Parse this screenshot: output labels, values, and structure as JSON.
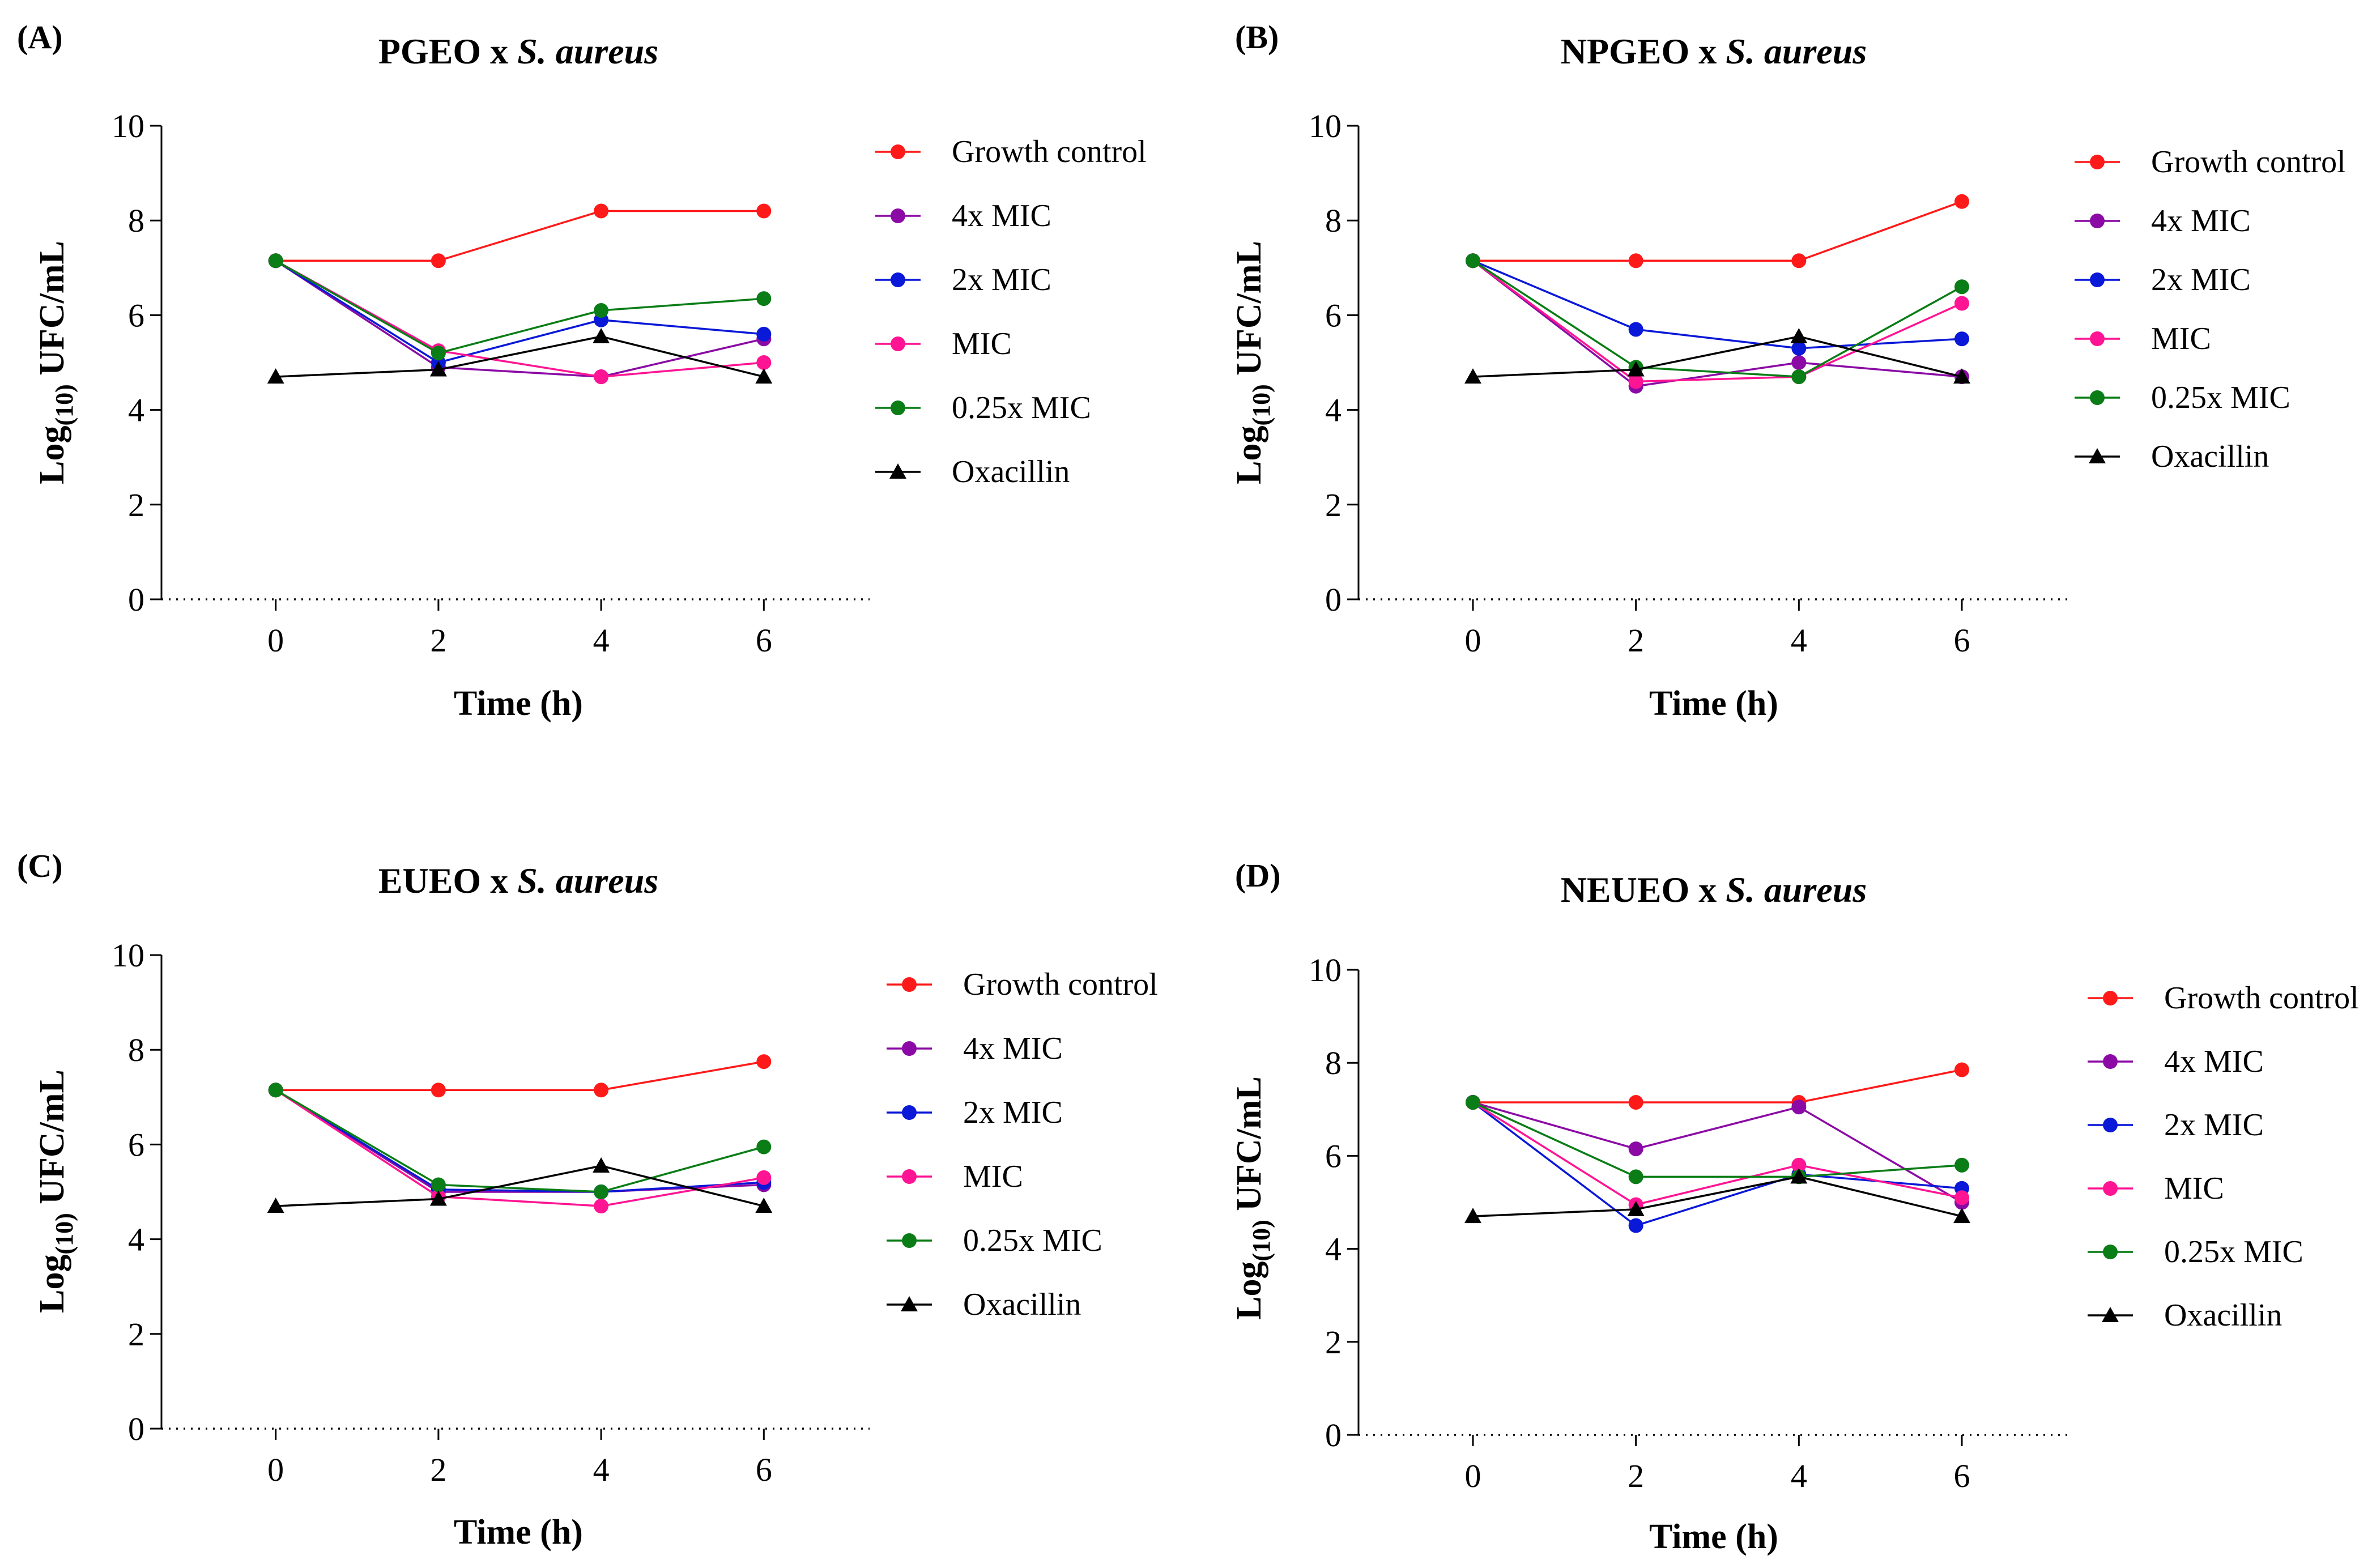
{
  "figure": {
    "colors": {
      "Growth control": "#ff1a1a",
      "4x MIC": "#8b0aa5",
      "2x MIC": "#0a18d8",
      "MIC": "#ff1493",
      "0.25x MIC": "#0a7d16",
      "Oxacillin": "#000000"
    }
  },
  "chart_data": [
    {
      "type": "line",
      "panel_label": "(A)",
      "title_main": "PGEO x ",
      "title_italic": "S. aureus",
      "xlabel": "Time (h)",
      "ylabel_prefix": "Log",
      "ylabel_sub": "(10)",
      "ylabel_suffix": " UFC/mL",
      "x": [
        0,
        2,
        4,
        6
      ],
      "x_ticks": [
        "0",
        "2",
        "4",
        "6"
      ],
      "xlim": [
        -1.3,
        7.3
      ],
      "ylim": [
        0,
        10
      ],
      "y_ticks": [
        "0",
        "2",
        "4",
        "6",
        "8",
        "10"
      ],
      "legend_position": "right",
      "series": [
        {
          "name": "Growth control",
          "marker": "circle",
          "values": [
            7.15,
            7.15,
            8.2,
            8.2
          ]
        },
        {
          "name": "4x MIC",
          "marker": "circle",
          "values": [
            7.15,
            4.9,
            4.7,
            5.5
          ]
        },
        {
          "name": "2x MIC",
          "marker": "circle",
          "values": [
            7.15,
            5.0,
            5.9,
            5.6
          ]
        },
        {
          "name": "MIC",
          "marker": "circle",
          "values": [
            7.15,
            5.25,
            4.7,
            5.0
          ]
        },
        {
          "name": "0.25x MIC",
          "marker": "circle",
          "values": [
            7.15,
            5.2,
            6.1,
            6.35
          ]
        },
        {
          "name": "Oxacillin",
          "marker": "triangle",
          "values": [
            4.7,
            4.85,
            5.55,
            4.7
          ]
        }
      ]
    },
    {
      "type": "line",
      "panel_label": "(B)",
      "title_main": "NPGEO x ",
      "title_italic": "S. aureus",
      "xlabel": "Time (h)",
      "ylabel_prefix": "Log",
      "ylabel_sub": "(10)",
      "ylabel_suffix": " UFC/mL",
      "x": [
        0,
        2,
        4,
        6
      ],
      "x_ticks": [
        "0",
        "2",
        "4",
        "6"
      ],
      "xlim": [
        -1.3,
        7.3
      ],
      "ylim": [
        0,
        10
      ],
      "y_ticks": [
        "0",
        "2",
        "4",
        "6",
        "8",
        "10"
      ],
      "legend_position": "right",
      "series": [
        {
          "name": "Growth control",
          "marker": "circle",
          "values": [
            7.15,
            7.15,
            7.15,
            8.4
          ]
        },
        {
          "name": "4x MIC",
          "marker": "circle",
          "values": [
            7.15,
            4.5,
            5.0,
            4.7
          ]
        },
        {
          "name": "2x MIC",
          "marker": "circle",
          "values": [
            7.15,
            5.7,
            5.3,
            5.5
          ]
        },
        {
          "name": "MIC",
          "marker": "circle",
          "values": [
            7.15,
            4.6,
            4.7,
            6.25
          ]
        },
        {
          "name": "0.25x MIC",
          "marker": "circle",
          "values": [
            7.15,
            4.9,
            4.7,
            6.6
          ]
        },
        {
          "name": "Oxacillin",
          "marker": "triangle",
          "values": [
            4.7,
            4.85,
            5.55,
            4.7
          ]
        }
      ]
    },
    {
      "type": "line",
      "panel_label": "(C)",
      "title_main": "EUEO x ",
      "title_italic": "S. aureus",
      "xlabel": "Time (h)",
      "ylabel_prefix": "Log",
      "ylabel_sub": "(10)",
      "ylabel_suffix": " UFC/mL",
      "x": [
        0,
        2,
        4,
        6
      ],
      "x_ticks": [
        "0",
        "2",
        "4",
        "6"
      ],
      "xlim": [
        -1.3,
        7.3
      ],
      "ylim": [
        0,
        10
      ],
      "y_ticks": [
        "0",
        "2",
        "4",
        "6",
        "8",
        "10"
      ],
      "legend_position": "right",
      "series": [
        {
          "name": "Growth control",
          "marker": "circle",
          "values": [
            7.15,
            7.15,
            7.15,
            7.75
          ]
        },
        {
          "name": "4x MIC",
          "marker": "circle",
          "values": [
            7.15,
            5.0,
            5.0,
            5.15
          ]
        },
        {
          "name": "2x MIC",
          "marker": "circle",
          "values": [
            7.15,
            5.05,
            5.0,
            5.2
          ]
        },
        {
          "name": "MIC",
          "marker": "circle",
          "values": [
            7.15,
            4.9,
            4.7,
            5.3
          ]
        },
        {
          "name": "0.25x MIC",
          "marker": "circle",
          "values": [
            7.15,
            5.15,
            5.0,
            5.95
          ]
        },
        {
          "name": "Oxacillin",
          "marker": "triangle",
          "values": [
            4.7,
            4.85,
            5.55,
            4.7
          ]
        }
      ]
    },
    {
      "type": "line",
      "panel_label": "(D)",
      "title_main": "NEUEO x ",
      "title_italic": "S. aureus",
      "xlabel": "Time (h)",
      "ylabel_prefix": "Log",
      "ylabel_sub": "(10)",
      "ylabel_suffix": " UFC/mL",
      "x": [
        0,
        2,
        4,
        6
      ],
      "x_ticks": [
        "0",
        "2",
        "4",
        "6"
      ],
      "xlim": [
        -1.3,
        7.3
      ],
      "ylim": [
        0,
        10
      ],
      "y_ticks": [
        "0",
        "2",
        "4",
        "6",
        "8",
        "10"
      ],
      "legend_position": "right",
      "series": [
        {
          "name": "Growth control",
          "marker": "circle",
          "values": [
            7.15,
            7.15,
            7.15,
            7.85
          ]
        },
        {
          "name": "4x MIC",
          "marker": "circle",
          "values": [
            7.15,
            6.15,
            7.05,
            5.0
          ]
        },
        {
          "name": "2x MIC",
          "marker": "circle",
          "values": [
            7.15,
            4.5,
            5.6,
            5.3
          ]
        },
        {
          "name": "MIC",
          "marker": "circle",
          "values": [
            7.15,
            4.95,
            5.8,
            5.1
          ]
        },
        {
          "name": "0.25x MIC",
          "marker": "circle",
          "values": [
            7.15,
            5.55,
            5.55,
            5.8
          ]
        },
        {
          "name": "Oxacillin",
          "marker": "triangle",
          "values": [
            4.7,
            4.85,
            5.55,
            4.7
          ]
        }
      ]
    }
  ]
}
